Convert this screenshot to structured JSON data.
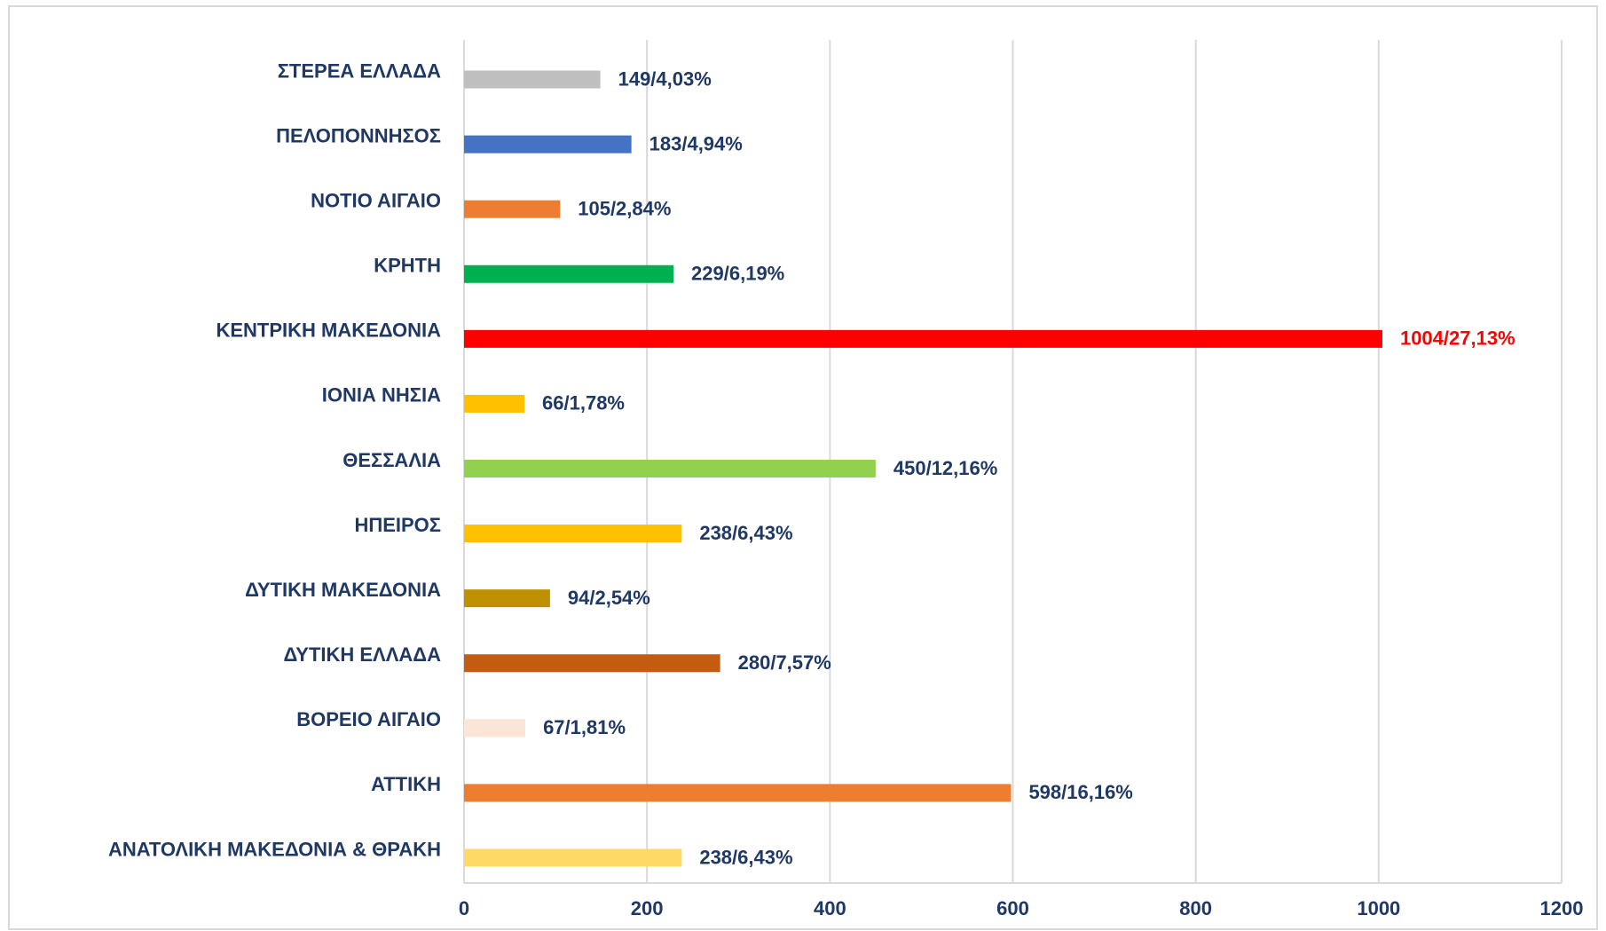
{
  "chart_data": {
    "type": "barh",
    "categories": [
      "ΣΤΕΡΕΑ ΕΛΛΑΔΑ",
      "ΠΕΛΟΠΟΝΝΗΣΟΣ",
      "ΝΟΤΙΟ ΑΙΓΑΙΟ",
      "ΚΡΗΤΗ",
      "ΚΕΝΤΡΙΚΗ ΜΑΚΕΔΟΝΙΑ",
      "ΙΟΝΙΑ ΝΗΣΙΑ",
      "ΘΕΣΣΑΛΙΑ",
      "ΗΠΕΙΡΟΣ",
      "ΔΥΤΙΚΗ ΜΑΚΕΔΟΝΙΑ",
      "ΔΥΤΙΚΗ ΕΛΛΑΔΑ",
      "ΒΟΡΕΙΟ ΑΙΓΑΙΟ",
      "ΑΤΤΙΚΗ",
      "ΑΝΑΤΟΛΙΚΗ ΜΑΚΕΔΟΝΙΑ & ΘΡΑΚΗ"
    ],
    "values": [
      149,
      183,
      105,
      229,
      1004,
      66,
      450,
      238,
      94,
      280,
      67,
      598,
      238
    ],
    "value_labels": [
      "149/4,03%",
      "183/4,94%",
      "105/2,84%",
      "229/6,19%",
      "1004/27,13%",
      "66/1,78%",
      "450/12,16%",
      "238/6,43%",
      "94/2,54%",
      "280/7,57%",
      "67/1,81%",
      "598/16,16%",
      "238/6,43%"
    ],
    "colors": [
      "#bfbfbf",
      "#4472c4",
      "#ed7d31",
      "#00b050",
      "#ff0000",
      "#ffc000",
      "#92d050",
      "#ffc000",
      "#bf9000",
      "#c55a11",
      "#fbe5d6",
      "#ed7d31",
      "#ffd966"
    ],
    "label_colors": [
      "#1f3864",
      "#1f3864",
      "#1f3864",
      "#1f3864",
      "#ff0000",
      "#1f3864",
      "#1f3864",
      "#1f3864",
      "#1f3864",
      "#1f3864",
      "#1f3864",
      "#1f3864",
      "#1f3864"
    ],
    "xlim": [
      0,
      1200
    ],
    "xticks": [
      0,
      200,
      400,
      600,
      800,
      1000,
      1200
    ],
    "grid": true
  }
}
